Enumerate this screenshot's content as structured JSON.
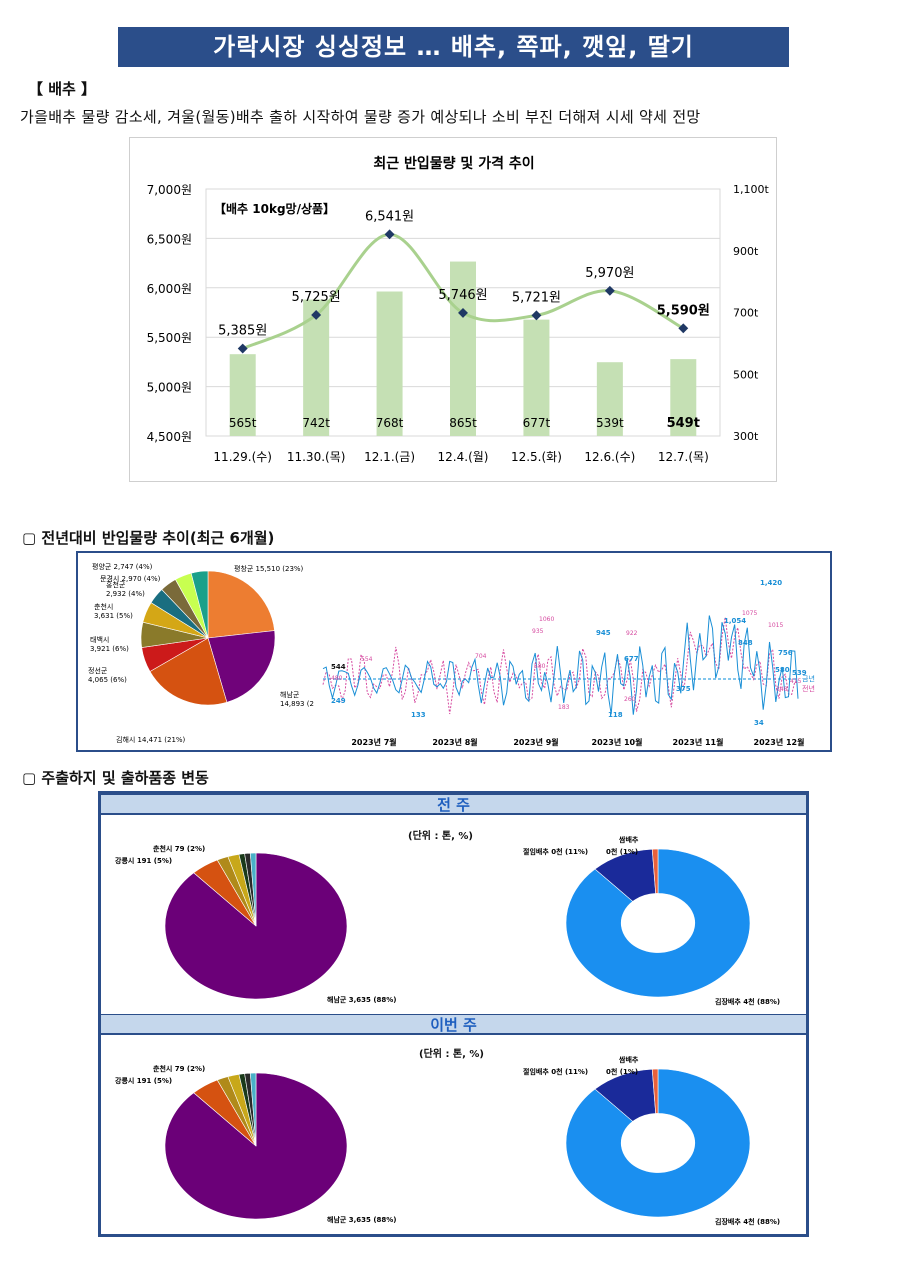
{
  "banner": {
    "title": "가락시장 싱싱정보 … 배추, 쪽파, 깻잎, 딸기"
  },
  "cabbage": {
    "header": "【 배추 】",
    "summary": "가을배추 물량 감소세, 겨울(월동)배추 출하 시작하여 물량 증가 예상되나 소비 부진 더해져 시세 약세 전망"
  },
  "chart_data": [
    {
      "type": "bar+line",
      "title": "최근 반입물량 및 가격 추이",
      "annotation": "【배추 10kg망/상품】",
      "categories": [
        "11.29.(수)",
        "11.30.(목)",
        "12.1.(금)",
        "12.4.(월)",
        "12.5.(화)",
        "12.6.(수)",
        "12.7.(목)"
      ],
      "series": [
        {
          "type": "bar",
          "axis": "right",
          "values": [
            565,
            742,
            768,
            865,
            677,
            539,
            549
          ],
          "labels": [
            "565t",
            "742t",
            "768t",
            "865t",
            "677t",
            "539t",
            "549t"
          ]
        },
        {
          "type": "line",
          "axis": "left",
          "values": [
            5385,
            5725,
            6541,
            5746,
            5721,
            5970,
            5590
          ],
          "labels": [
            "5,385원",
            "5,725원",
            "6,541원",
            "5,746원",
            "5,721원",
            "5,970원",
            "5,590원"
          ]
        }
      ],
      "y_left": {
        "ticks": [
          "7,000원",
          "6,500원",
          "6,000원",
          "5,500원",
          "5,000원",
          "4,500원"
        ],
        "range": [
          4500,
          7000
        ]
      },
      "y_right": {
        "ticks": [
          "1,100t",
          "900t",
          "700t",
          "500t",
          "300t"
        ],
        "range": [
          300,
          1100
        ]
      },
      "colors": {
        "bar": "#c5e0b4",
        "line": "#a9d18e",
        "marker": "#1f3864"
      }
    },
    {
      "type": "pie",
      "slices": [
        {
          "label": "평창군 15,510 (23%)",
          "value": 23,
          "color": "#ed7d31"
        },
        {
          "label": "해남군 14,893 (2",
          "value": 22,
          "color": "#70037a"
        },
        {
          "label": "김해시 14,471 (21%)",
          "value": 21,
          "color": "#d55211"
        },
        {
          "label": "정선군 4,065 (6%)",
          "value": 6,
          "color": "#cc1a1a"
        },
        {
          "label": "태백시 3,921 (6%)",
          "value": 6,
          "color": "#8a7a2a"
        },
        {
          "label": "춘천시 3,631 (5%)",
          "value": 5,
          "color": "#d4a716"
        },
        {
          "label": "홍천군 2,932 (4%)",
          "value": 4,
          "color": "#1a6e80"
        },
        {
          "label": "문경시 2,970 (4%)",
          "value": 4,
          "color": "#7a6a3a"
        },
        {
          "label": "평양군 2,747 (4%)",
          "value": 4,
          "color": "#c8ff50"
        },
        {
          "label": "",
          "value": 4,
          "color": "#1aa08a"
        }
      ]
    },
    {
      "type": "line",
      "x_ticks": [
        "2023년 7월",
        "2023년 8월",
        "2023년 9월",
        "2023년 10월",
        "2023년 11월",
        "2023년 12월"
      ],
      "series": [
        {
          "name": "금년",
          "labels": [
            "544",
            "249",
            "133",
            "945",
            "677",
            "118",
            "375",
            "1,054",
            "848",
            "1,420",
            "756",
            "580",
            "539",
            "34"
          ]
        },
        {
          "name": "전년",
          "labels": [
            "480",
            "554",
            "704",
            "935",
            "1060",
            "580",
            "183",
            "922",
            "260",
            "1075",
            "1015",
            "348",
            "415"
          ]
        }
      ],
      "colors": {
        "current": "#1a8fd6",
        "previous": "#d64aa0",
        "average": "#5ab4e6"
      }
    },
    {
      "type": "pie",
      "panel": "전주-산지",
      "slices": [
        {
          "label": "해남군 3,635 (88%)",
          "value": 88,
          "color": "#6b0078"
        },
        {
          "label": "강릉시 191 (5%)",
          "value": 5,
          "color": "#d55211"
        },
        {
          "label": "춘천시 79 (2%)",
          "value": 2,
          "color": "#b08a1a"
        },
        {
          "label": "",
          "value": 2,
          "color": "#c8a81a"
        },
        {
          "label": "",
          "value": 1,
          "color": "#1a3a1a"
        },
        {
          "label": "",
          "value": 1,
          "color": "#2a2a2a"
        },
        {
          "label": "",
          "value": 1,
          "color": "#4ab0c8"
        }
      ]
    },
    {
      "type": "pie",
      "panel": "전주-품종",
      "slices": [
        {
          "label": "김장배추 4천 (88%)",
          "value": 88,
          "color": "#1a8ff0"
        },
        {
          "label": "절임배추 0천 (11%)",
          "value": 11,
          "color": "#1a2a9a"
        },
        {
          "label": "쌈배추 0천 (1%)",
          "value": 1,
          "color": "#e8603a"
        }
      ]
    }
  ],
  "yoy": {
    "title": "▢ 전년대비 반입물량 추이(최근 6개월)"
  },
  "origin": {
    "title": "▢ 주출하지 및 출하품종 변동",
    "prev_week": "전 주",
    "this_week": "이번 주",
    "unit": "(단위 : 톤, %)"
  }
}
